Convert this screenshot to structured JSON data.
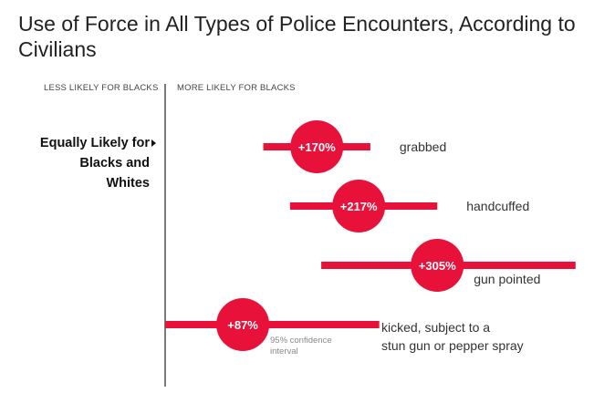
{
  "chart_data": {
    "type": "dot-interval",
    "title": "Use of Force in All Types of Police Encounters, According to Civilians",
    "axis_left_label": "LESS LIKELY FOR BLACKS",
    "axis_right_label": "MORE LIKELY FOR BLACKS",
    "baseline_label": "Equally Likely for Blacks and Whites",
    "xlim": [
      0,
      450
    ],
    "ci_note": "95% confidence interval",
    "series": [
      {
        "label": "grabbed",
        "value": 170,
        "value_label": "+170%",
        "ci": [
          110,
          230
        ]
      },
      {
        "label": "handcuffed",
        "value": 217,
        "value_label": "+217%",
        "ci": [
          140,
          305
        ]
      },
      {
        "label": "gun pointed",
        "value": 305,
        "value_label": "+305%",
        "ci": [
          175,
          460
        ]
      },
      {
        "label": "kicked, subject to a stun gun or pepper spray",
        "value": 87,
        "value_label": "+87%",
        "ci": [
          0,
          240
        ]
      }
    ],
    "colors": {
      "accent": "#e8113a",
      "axis": "#222222"
    }
  }
}
